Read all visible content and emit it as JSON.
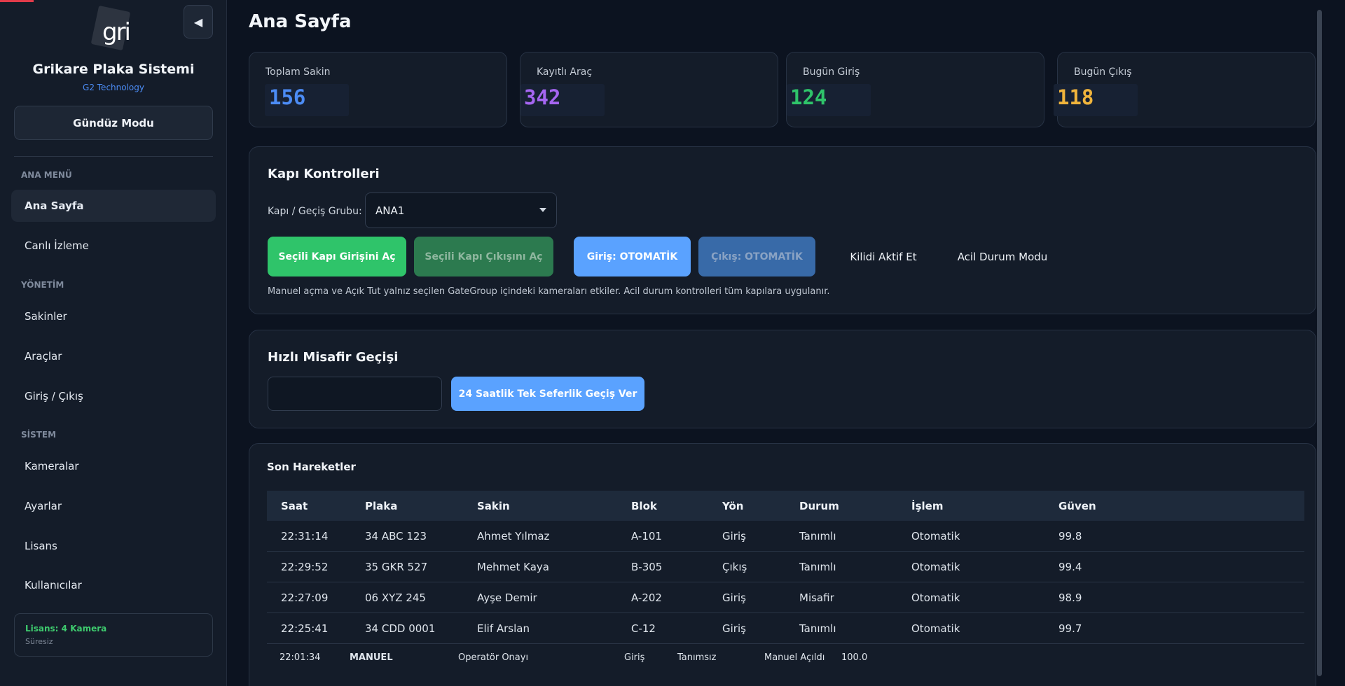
{
  "sidebar": {
    "logo_text": "gri",
    "collapse_icon": "◀",
    "title": "Grikare Plaka Sistemi",
    "subtitle": "G2 Technology",
    "mode_button": "Gündüz Modu",
    "sections": {
      "main": "ANA MENÜ",
      "management": "YÖNETİM",
      "system": "SİSTEM"
    },
    "items": [
      {
        "label": "Ana Sayfa"
      },
      {
        "label": "Canlı İzleme"
      },
      {
        "label": "Sakinler"
      },
      {
        "label": "Araçlar"
      },
      {
        "label": "Giriş / Çıkış"
      },
      {
        "label": "Kameralar"
      },
      {
        "label": "Ayarlar"
      },
      {
        "label": "Lisans"
      },
      {
        "label": "Kullanıcılar"
      }
    ],
    "license": {
      "title": "Lisans: 4 Kamera",
      "duration": "Süresiz"
    }
  },
  "page": {
    "title": "Ana Sayfa"
  },
  "stats": [
    {
      "label": "Toplam Sakin",
      "value": "156",
      "color": "#4c8cf5"
    },
    {
      "label": "Kayıtlı Araç",
      "value": "342",
      "color": "#a666f2"
    },
    {
      "label": "Bugün Giriş",
      "value": "124",
      "color": "#2fc46a"
    },
    {
      "label": "Bugün Çıkış",
      "value": "118",
      "color": "#f0b43c"
    }
  ],
  "gate": {
    "title": "Kapı Kontrolleri",
    "group_label": "Kapı / Geçiş Grubu:",
    "group_value": "ANA1",
    "buttons": {
      "open_entry": "Seçili Kapı Girişini Aç",
      "open_exit": "Seçili Kapı Çıkışını Aç",
      "entry_auto": "Giriş: OTOMATİK",
      "exit_auto": "Çıkış: OTOMATİK",
      "lock": "Kilidi Aktif Et",
      "emergency": "Acil Durum Modu"
    },
    "note": "Manuel açma ve Açık Tut yalnız seçilen GateGroup içindeki kameraları etkiler. Acil durum kontrolleri tüm kapılara uygulanır."
  },
  "guest": {
    "title": "Hızlı Misafir Geçişi",
    "input_value": "",
    "button": "24 Saatlik Tek Seferlik Geçiş Ver"
  },
  "movements": {
    "title": "Son Hareketler",
    "columns": [
      "Saat",
      "Plaka",
      "Sakin",
      "Blok",
      "Yön",
      "Durum",
      "İşlem",
      "Güven"
    ],
    "rows": [
      [
        "22:31:14",
        "34 ABC 123",
        "Ahmet Yılmaz",
        "A-101",
        "Giriş",
        "Tanımlı",
        "Otomatik",
        "99.8"
      ],
      [
        "22:29:52",
        "35 GKR 527",
        "Mehmet Kaya",
        "B-305",
        "Çıkış",
        "Tanımlı",
        "Otomatik",
        "99.4"
      ],
      [
        "22:27:09",
        "06 XYZ 245",
        "Ayşe Demir",
        "A-202",
        "Giriş",
        "Misafir",
        "Otomatik",
        "98.9"
      ],
      [
        "22:25:41",
        "34 CDD 0001",
        "Elif Arslan",
        "C-12",
        "Giriş",
        "Tanımlı",
        "Otomatik",
        "99.7"
      ],
      [
        "22:01:34",
        "MANUEL",
        "Operatör Onayı",
        "",
        "Giriş",
        "Tanımsız",
        "Manuel Açıldı",
        "100.0"
      ]
    ]
  }
}
